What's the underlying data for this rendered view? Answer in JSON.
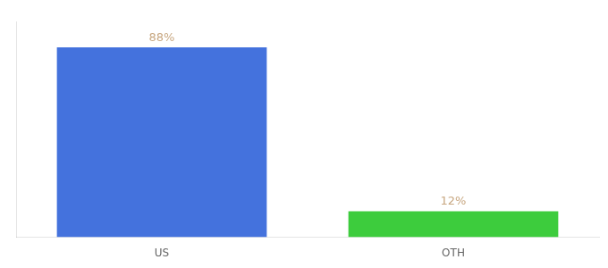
{
  "chart_data": {
    "type": "bar",
    "categories": [
      "US",
      "OTH"
    ],
    "values": [
      88,
      12
    ],
    "colors": [
      "#4472dd",
      "#3dcc3d"
    ],
    "data_labels": true,
    "value_labels": [
      "88%",
      "12%"
    ],
    "ylim": [
      0,
      100
    ],
    "tick_labels": "x",
    "grid": false
  }
}
